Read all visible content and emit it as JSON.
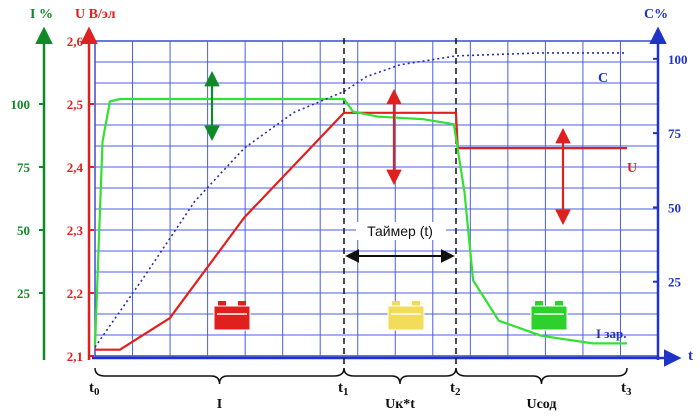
{
  "chart_data": {
    "type": "line",
    "x": {
      "ticks": [
        {
          "value": 0,
          "label": "t0",
          "base": "t",
          "sub": "0"
        },
        {
          "value": 1,
          "label": "t1",
          "base": "t",
          "sub": "1"
        },
        {
          "value": 2,
          "label": "t2",
          "base": "t",
          "sub": "2"
        },
        {
          "value": 3,
          "label": "t3",
          "base": "t",
          "sub": "3"
        }
      ],
      "axis_label": "t",
      "range": [
        0,
        3
      ]
    },
    "axes": {
      "current": {
        "label": "I %",
        "ticks": [
          25,
          50,
          75,
          100
        ],
        "range": [
          0,
          125
        ],
        "color": "#0f8a28"
      },
      "voltage": {
        "label": "U В/эл",
        "ticks": [
          "2,1",
          "2,2",
          "2,3",
          "2,4",
          "2,5",
          "2,6"
        ],
        "range": [
          2.1,
          2.6
        ],
        "color": "#e0201e"
      },
      "capacity": {
        "label": "C%",
        "ticks": [
          25,
          50,
          75,
          100
        ],
        "range": [
          0,
          106
        ],
        "color": "#1f33c8"
      }
    },
    "series": [
      {
        "name": "U",
        "axis": "voltage",
        "color": "#e0201e",
        "points": [
          [
            0.0,
            2.11
          ],
          [
            0.1,
            2.11
          ],
          [
            0.3,
            2.16
          ],
          [
            0.6,
            2.32
          ],
          [
            1.0,
            2.486
          ],
          [
            2.0,
            2.486
          ],
          [
            2.01,
            2.43
          ],
          [
            3.0,
            2.43
          ]
        ]
      },
      {
        "name": "I зар.",
        "axis": "current",
        "color": "#33e033",
        "points": [
          [
            0.0,
            4
          ],
          [
            0.03,
            85
          ],
          [
            0.06,
            101
          ],
          [
            0.1,
            102
          ],
          [
            0.5,
            102
          ],
          [
            1.0,
            102
          ],
          [
            1.08,
            97
          ],
          [
            1.3,
            95
          ],
          [
            1.7,
            94
          ],
          [
            1.98,
            92
          ],
          [
            2.05,
            65
          ],
          [
            2.1,
            30
          ],
          [
            2.25,
            14
          ],
          [
            2.5,
            8
          ],
          [
            2.8,
            5
          ],
          [
            3.0,
            5
          ]
        ]
      },
      {
        "name": "C",
        "axis": "capacity",
        "color": "#2b2bb0",
        "points": [
          [
            0.0,
            3
          ],
          [
            0.2,
            27
          ],
          [
            0.4,
            52
          ],
          [
            0.6,
            70
          ],
          [
            0.8,
            82
          ],
          [
            1.0,
            89
          ],
          [
            1.2,
            94
          ],
          [
            1.5,
            98
          ],
          [
            2.0,
            101
          ],
          [
            2.5,
            102
          ],
          [
            3.0,
            102
          ]
        ]
      }
    ],
    "annotations": {
      "timer": "Таймер (t)",
      "stages": [
        {
          "label": "I",
          "from": 0,
          "to": 1
        },
        {
          "label": "Uк*t",
          "from": 1,
          "to": 2
        },
        {
          "label": "Uсод",
          "from": 2,
          "to": 3
        }
      ]
    },
    "battery_colors": [
      "#e0201e",
      "#f2dc5a",
      "#2ed02e"
    ],
    "grid": true
  }
}
